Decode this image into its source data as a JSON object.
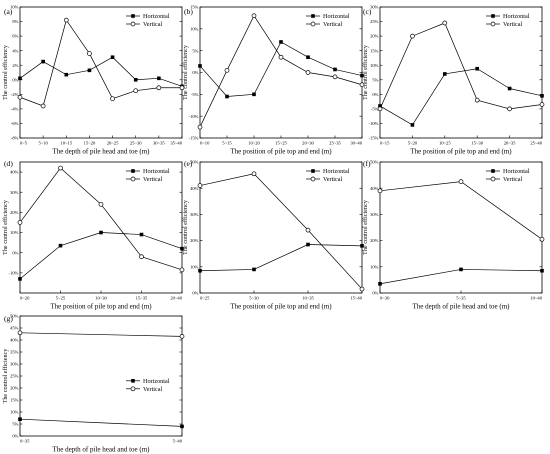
{
  "colors": {
    "axis": "#000000",
    "horizontal": "#000000",
    "vertical": "#000000"
  },
  "chart_data": [
    {
      "panel": "(a)",
      "type": "line",
      "x": [
        "0~5",
        "5~10",
        "10~15",
        "15~20",
        "20~25",
        "25~30",
        "30~35",
        "35~40"
      ],
      "xlabel": "The depth of pile head and toe (m)",
      "ylabel": "The control efficiency",
      "ylim": [
        -8,
        10
      ],
      "yticks": [
        -8,
        -6,
        -4,
        -2,
        0,
        2,
        4,
        6,
        8,
        10
      ],
      "ytick_labels": [
        "-8%",
        "-6%",
        "-4%",
        "-2%",
        "0%",
        "2%",
        "4%",
        "6%",
        "8%",
        "10%"
      ],
      "legend": {
        "position": "top-right",
        "entries": [
          "Horizontal",
          "Vertical"
        ]
      },
      "series": [
        {
          "name": "Horizontal",
          "marker": "filled-square",
          "values": [
            0.2,
            2.5,
            0.7,
            1.3,
            3.1,
            0.0,
            0.2,
            -0.9
          ]
        },
        {
          "name": "Vertical",
          "marker": "open-circle",
          "values": [
            -2.4,
            -3.6,
            8.2,
            3.6,
            -2.6,
            -1.5,
            -1.1,
            -1.1
          ]
        }
      ]
    },
    {
      "panel": "(b)",
      "type": "line",
      "x": [
        "0~10",
        "5~15",
        "10~20",
        "15~25",
        "20~30",
        "25~35",
        "30~40"
      ],
      "xlabel": "The position of pile top and end (m)",
      "ylabel": "The control efficiency",
      "ylim": [
        -15,
        15
      ],
      "yticks": [
        -15,
        -10,
        -5,
        0,
        5,
        10,
        15
      ],
      "ytick_labels": [
        "-15%",
        "-10%",
        "-5%",
        "0%",
        "5%",
        "10%",
        "15%"
      ],
      "legend": {
        "position": "top-right",
        "entries": [
          "Horizontal",
          "Vertical"
        ]
      },
      "series": [
        {
          "name": "Horizontal",
          "marker": "filled-square",
          "values": [
            1.5,
            -5.5,
            -5.0,
            7.0,
            3.5,
            0.7,
            -0.7
          ]
        },
        {
          "name": "Vertical",
          "marker": "open-circle",
          "values": [
            -12.5,
            0.5,
            13.0,
            3.5,
            0.0,
            -1.0,
            -2.8
          ]
        }
      ]
    },
    {
      "panel": "(c)",
      "type": "line",
      "x": [
        "0~15",
        "5~20",
        "10~25",
        "15~30",
        "20~35",
        "25~40"
      ],
      "xlabel": "The position of pile top and end (m)",
      "ylabel": "The control efficiency",
      "ylim": [
        -15,
        30
      ],
      "yticks": [
        -15,
        -10,
        -5,
        0,
        5,
        10,
        15,
        20,
        25,
        30
      ],
      "ytick_labels": [
        "-15%",
        "-10%",
        "-5%",
        "0%",
        "5%",
        "10%",
        "15%",
        "20%",
        "25%",
        "30%"
      ],
      "legend": {
        "position": "top-right",
        "entries": [
          "Horizontal",
          "Vertical"
        ]
      },
      "series": [
        {
          "name": "Horizontal",
          "marker": "filled-square",
          "values": [
            -4.0,
            -10.5,
            7.0,
            8.8,
            2.0,
            -0.5
          ]
        },
        {
          "name": "Vertical",
          "marker": "open-circle",
          "values": [
            -5.0,
            20.0,
            24.5,
            -2.0,
            -5.0,
            -3.5
          ]
        }
      ]
    },
    {
      "panel": "(d)",
      "type": "line",
      "x": [
        "0~20",
        "5~25",
        "10~30",
        "15~35",
        "20~40"
      ],
      "xlabel": "The position of pile top and end (m)",
      "ylabel": "The control efficiency",
      "ylim": [
        -20,
        45
      ],
      "yticks": [
        -10,
        0,
        10,
        20,
        30,
        40
      ],
      "ytick_labels": [
        "-10%",
        "0%",
        "10%",
        "20%",
        "30%",
        "40%"
      ],
      "legend": {
        "position": "top-right",
        "entries": [
          "Horizontal",
          "Vertical"
        ]
      },
      "series": [
        {
          "name": "Horizontal",
          "marker": "filled-square",
          "values": [
            -13.0,
            3.5,
            10.0,
            9.0,
            2.0
          ]
        },
        {
          "name": "Vertical",
          "marker": "open-circle",
          "values": [
            15.0,
            42.0,
            24.0,
            -2.0,
            -8.5
          ]
        }
      ]
    },
    {
      "panel": "(e)",
      "type": "line",
      "x": [
        "0~25",
        "5~30",
        "10~35",
        "15~40"
      ],
      "xlabel": "The position of pile top and end (m)",
      "ylabel": "The control efficiency",
      "ylim": [
        0,
        50
      ],
      "yticks": [
        0,
        10,
        20,
        30,
        40,
        50
      ],
      "ytick_labels": [
        "0%",
        "10%",
        "20%",
        "30%",
        "40%",
        "50%"
      ],
      "legend": {
        "position": "top-right",
        "entries": [
          "Horizontal",
          "Vertical"
        ]
      },
      "series": [
        {
          "name": "Horizontal",
          "marker": "filled-square",
          "values": [
            8.5,
            9.0,
            18.5,
            18.0
          ]
        },
        {
          "name": "Vertical",
          "marker": "open-circle",
          "values": [
            41.0,
            45.5,
            24.0,
            1.5
          ]
        }
      ]
    },
    {
      "panel": "(f)",
      "type": "line",
      "x": [
        "0~30",
        "5~35",
        "10~40"
      ],
      "xlabel": "The depth of pile head and toe (m)",
      "ylabel": "The control efficiency",
      "ylim": [
        0,
        50
      ],
      "yticks": [
        0,
        10,
        20,
        30,
        40,
        50
      ],
      "ytick_labels": [
        "0%",
        "10%",
        "20%",
        "30%",
        "40%",
        "50%"
      ],
      "legend": {
        "position": "top-right",
        "entries": [
          "Horizontal",
          "Vertical"
        ]
      },
      "series": [
        {
          "name": "Horizontal",
          "marker": "filled-square",
          "values": [
            3.5,
            9.0,
            8.5
          ]
        },
        {
          "name": "Vertical",
          "marker": "open-circle",
          "values": [
            39.0,
            42.5,
            20.5
          ]
        }
      ]
    },
    {
      "panel": "(g)",
      "type": "line",
      "x": [
        "0~35",
        "5~40"
      ],
      "xlabel": "The depth of pile head and toe (m)",
      "ylabel": "The control efficiency",
      "ylim": [
        0,
        50
      ],
      "yticks": [
        0,
        5,
        10,
        15,
        20,
        25,
        30,
        35,
        40,
        45,
        50
      ],
      "ytick_labels": [
        "0%",
        "5%",
        "10%",
        "15%",
        "20%",
        "25%",
        "30%",
        "35%",
        "40%",
        "45%",
        "50%"
      ],
      "legend": {
        "position": "middle-right",
        "entries": [
          "Horizontal",
          "Vertical"
        ]
      },
      "series": [
        {
          "name": "Horizontal",
          "marker": "filled-square",
          "values": [
            7.0,
            4.0
          ]
        },
        {
          "name": "Vertical",
          "marker": "open-circle",
          "values": [
            43.0,
            41.5
          ]
        }
      ]
    }
  ]
}
